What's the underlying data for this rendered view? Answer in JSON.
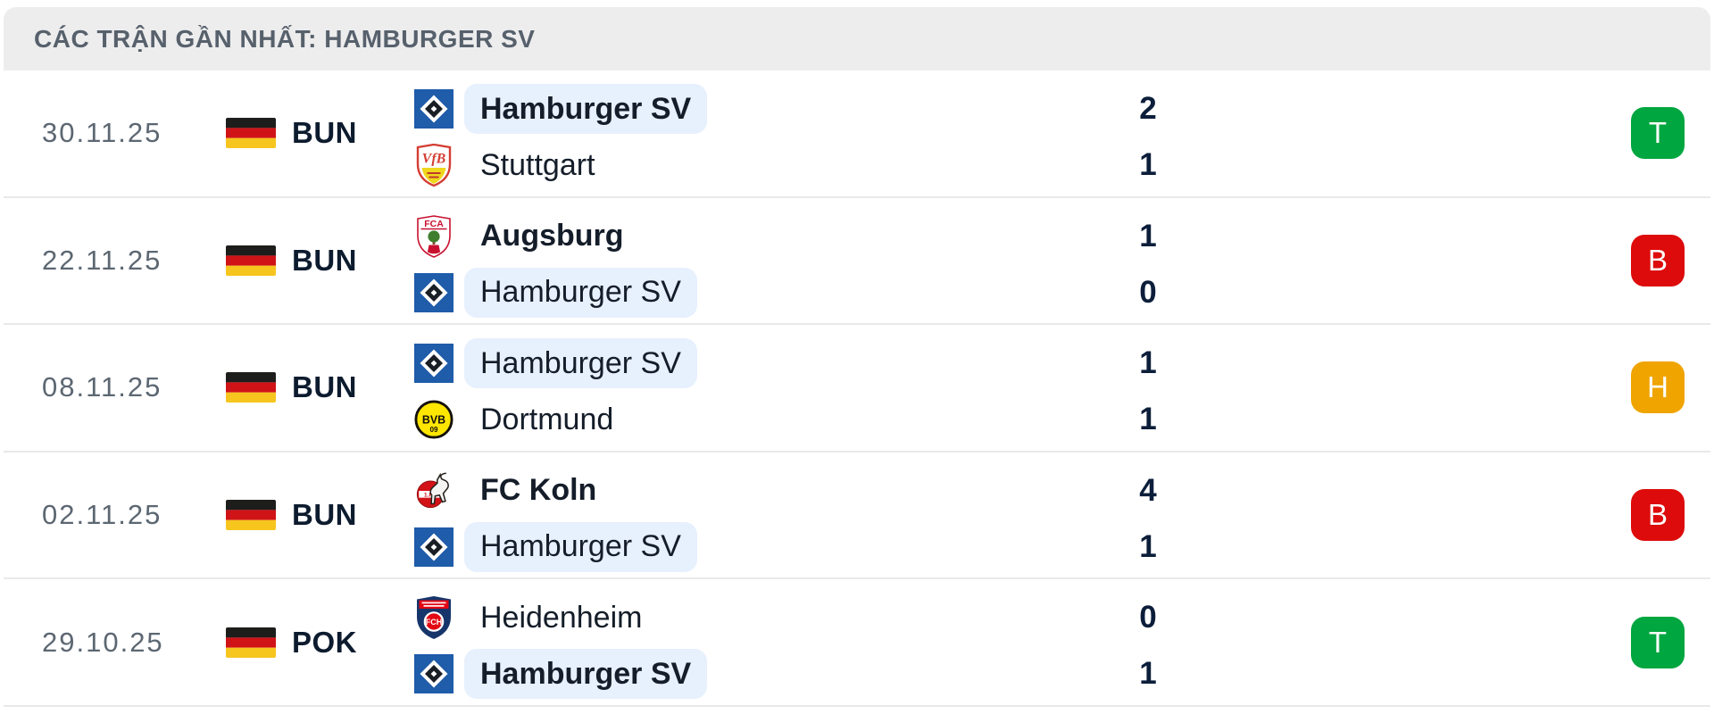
{
  "header": {
    "title": "CÁC TRẬN GẦN NHẤT: HAMBURGER SV"
  },
  "colors": {
    "win": "#00A63F",
    "loss": "#DD0B0B",
    "draw": "#F0A400",
    "highlight": "#E7F0FD",
    "hsv_blue": "#1F5CA9",
    "flag_black": "#1D1D1B",
    "flag_red": "#D01317",
    "flag_gold": "#F6C51E"
  },
  "matches": [
    {
      "date": "30.11.25",
      "competition": "BUN",
      "flag": "germany-flag",
      "result": "T",
      "result_type": "win",
      "home": {
        "name": "Hamburger SV",
        "logo": "hamburger-sv-logo",
        "score": "2",
        "bold": true,
        "highlight": true
      },
      "away": {
        "name": "Stuttgart",
        "logo": "stuttgart-logo",
        "score": "1",
        "bold": false,
        "highlight": false
      }
    },
    {
      "date": "22.11.25",
      "competition": "BUN",
      "flag": "germany-flag",
      "result": "B",
      "result_type": "loss",
      "home": {
        "name": "Augsburg",
        "logo": "augsburg-logo",
        "score": "1",
        "bold": true,
        "highlight": false
      },
      "away": {
        "name": "Hamburger SV",
        "logo": "hamburger-sv-logo",
        "score": "0",
        "bold": false,
        "highlight": true
      }
    },
    {
      "date": "08.11.25",
      "competition": "BUN",
      "flag": "germany-flag",
      "result": "H",
      "result_type": "draw",
      "home": {
        "name": "Hamburger SV",
        "logo": "hamburger-sv-logo",
        "score": "1",
        "bold": false,
        "highlight": true
      },
      "away": {
        "name": "Dortmund",
        "logo": "dortmund-logo",
        "score": "1",
        "bold": false,
        "highlight": false
      }
    },
    {
      "date": "02.11.25",
      "competition": "BUN",
      "flag": "germany-flag",
      "result": "B",
      "result_type": "loss",
      "home": {
        "name": "FC Koln",
        "logo": "fc-koln-logo",
        "score": "4",
        "bold": true,
        "highlight": false
      },
      "away": {
        "name": "Hamburger SV",
        "logo": "hamburger-sv-logo",
        "score": "1",
        "bold": false,
        "highlight": true
      }
    },
    {
      "date": "29.10.25",
      "competition": "POK",
      "flag": "germany-flag",
      "result": "T",
      "result_type": "win",
      "home": {
        "name": "Heidenheim",
        "logo": "heidenheim-logo",
        "score": "0",
        "bold": false,
        "highlight": false
      },
      "away": {
        "name": "Hamburger SV",
        "logo": "hamburger-sv-logo",
        "score": "1",
        "bold": true,
        "highlight": true
      }
    }
  ]
}
